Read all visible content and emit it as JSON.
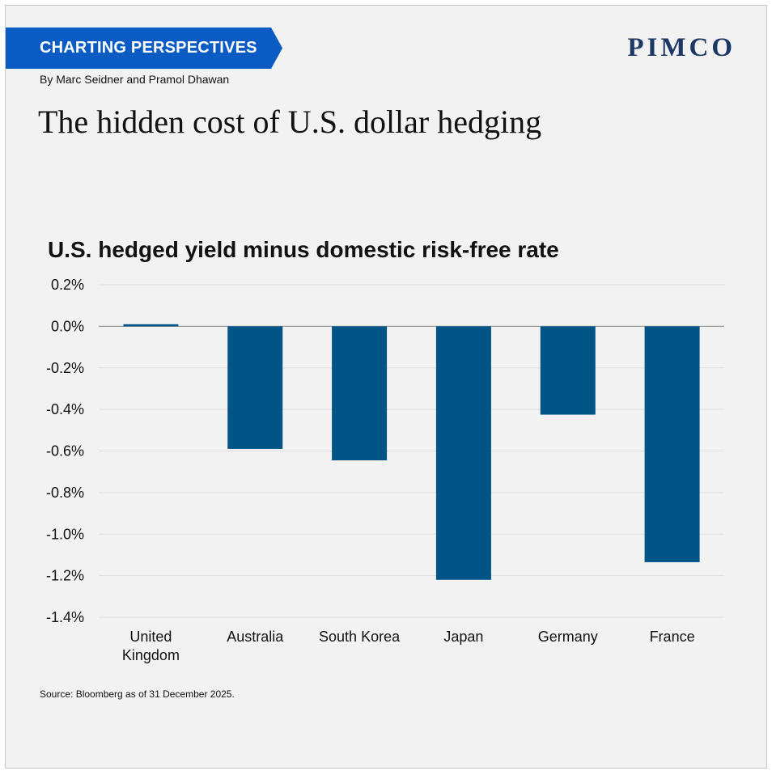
{
  "header": {
    "banner_label": "CHARTING PERSPECTIVES",
    "logo_text": "PIMCO",
    "byline": "By Marc Seidner and Pramol Dhawan",
    "headline": "The hidden cost of U.S. dollar hedging"
  },
  "footer": {
    "source": "Source: Bloomberg as of 31 December 2025."
  },
  "colors": {
    "banner": "#0a5bc4",
    "bar": "#005586",
    "logo": "#1c3966"
  },
  "chart_data": {
    "type": "bar",
    "title": "U.S. hedged yield minus domestic risk-free rate",
    "xlabel": "",
    "ylabel": "",
    "categories": [
      [
        "United",
        "Kingdom"
      ],
      [
        "Australia"
      ],
      [
        "South Korea"
      ],
      [
        "Japan"
      ],
      [
        "Germany"
      ],
      [
        "France"
      ]
    ],
    "values": [
      0.01,
      -0.59,
      -0.645,
      -1.22,
      -0.425,
      -1.135
    ],
    "ylim": [
      -1.4,
      0.2
    ],
    "yticks": [
      0.2,
      0.0,
      -0.2,
      -0.4,
      -0.6,
      -0.8,
      -1.0,
      -1.2,
      -1.4
    ],
    "ytick_labels": [
      "0.2%",
      "0.0%",
      "-0.2%",
      "-0.4%",
      "-0.6%",
      "-0.8%",
      "-1.0%",
      "-1.2%",
      "-1.4%"
    ],
    "grid": true,
    "legend": "none"
  }
}
